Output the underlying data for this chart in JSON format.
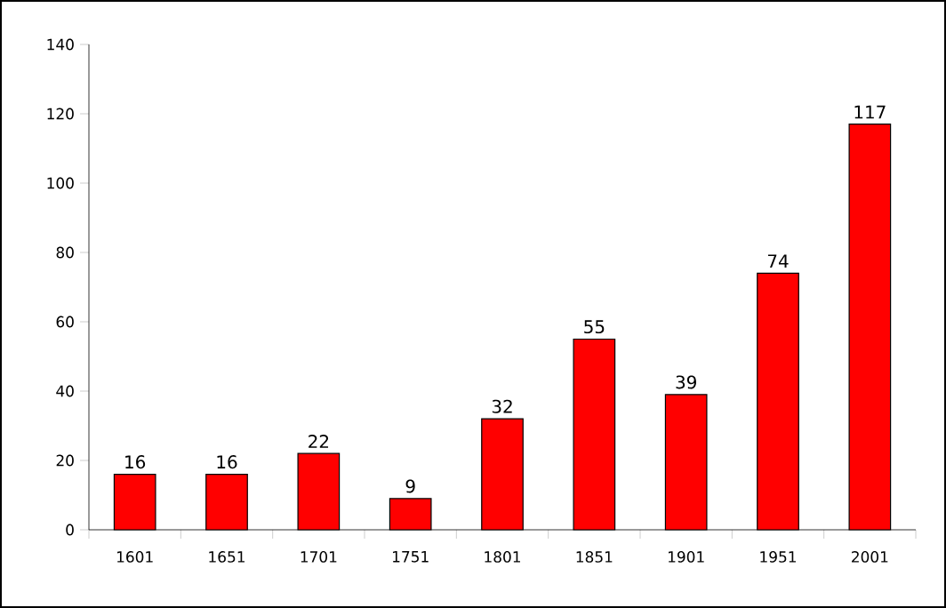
{
  "chart_data": {
    "type": "bar",
    "categories": [
      "1601",
      "1651",
      "1701",
      "1751",
      "1801",
      "1851",
      "1901",
      "1951",
      "2001"
    ],
    "values": [
      16,
      16,
      22,
      9,
      32,
      55,
      39,
      74,
      117
    ],
    "color": "#ff0000",
    "ylim": [
      0,
      140
    ],
    "yticks": [
      0,
      20,
      40,
      60,
      80,
      100,
      120,
      140
    ],
    "grid": false,
    "data_labels": true
  }
}
